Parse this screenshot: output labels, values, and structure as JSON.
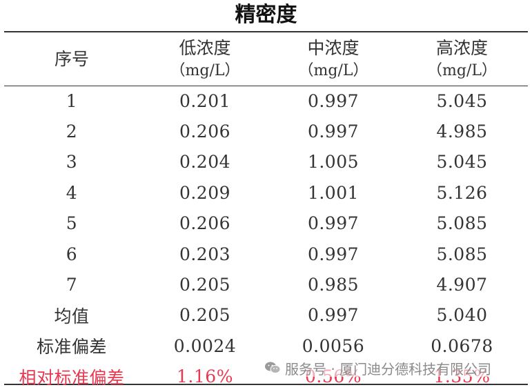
{
  "title": "精密度",
  "headers": [
    {
      "label": "序号",
      "unit": ""
    },
    {
      "label": "低浓度",
      "unit": "（mg/L）"
    },
    {
      "label": "中浓度",
      "unit": "（mg/L）"
    },
    {
      "label": "高浓度",
      "unit": "（mg/L）"
    }
  ],
  "rows": [
    [
      "1",
      "0.201",
      "0.997",
      "5.045"
    ],
    [
      "2",
      "0.206",
      "0.997",
      "4.985"
    ],
    [
      "3",
      "0.204",
      "1.005",
      "5.045"
    ],
    [
      "4",
      "0.209",
      "1.001",
      "5.126"
    ],
    [
      "5",
      "0.206",
      "0.997",
      "5.085"
    ],
    [
      "6",
      "0.203",
      "0.997",
      "5.085"
    ],
    [
      "7",
      "0.205",
      "0.985",
      "4.907"
    ],
    [
      "均值",
      "0.205",
      "0.997",
      "5.040"
    ],
    [
      "标准偏差",
      "0.0024",
      "0.0056",
      "0.0678"
    ],
    [
      "相对标准偏差",
      "1.16%",
      "0.56%",
      "1.35%"
    ]
  ],
  "highlight_color": "#e8384f",
  "watermark": {
    "icon": "wechat-icon",
    "text": "服务号 · 厦门迪分德科技有限公司"
  }
}
